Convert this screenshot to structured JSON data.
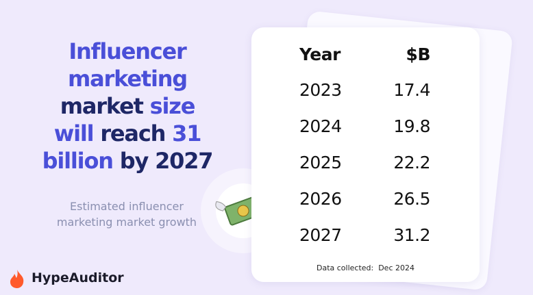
{
  "headline": [
    "Influencer marketing",
    "market",
    "size will",
    "reach",
    "31 billion",
    "by 2027"
  ],
  "subtitle": "Estimated influencer marketing market growth",
  "brand": "HypeAuditor",
  "table": {
    "header": [
      "Year",
      "$B"
    ],
    "rows": [
      [
        2023,
        17.4
      ],
      [
        2024,
        19.8
      ],
      [
        2025,
        22.2
      ],
      [
        2026,
        26.5
      ],
      [
        2027,
        31.2
      ]
    ]
  },
  "footnote": "Data collected:  Dec 2024"
}
